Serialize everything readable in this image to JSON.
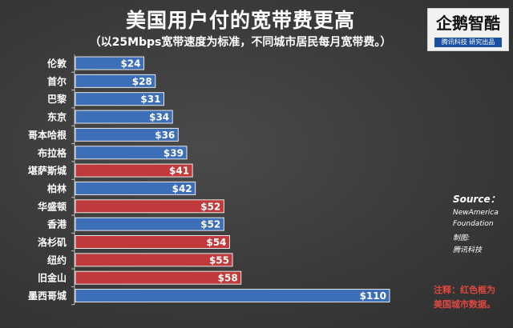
{
  "header": {
    "title": "美国用户付的宽带费更高",
    "subtitle": "（以25Mbps宽带速度为标准，不同城市居民每月宽带费。）"
  },
  "logo": {
    "name": "企鹅智酷",
    "sub": "腾讯科技  研究出品"
  },
  "source": {
    "label": "Source：",
    "line1": "NewAmerica",
    "line2": "Foundation",
    "line3": "制图:",
    "line4": "腾讯科技"
  },
  "note": {
    "line1": "注释：红色框为",
    "line2": "美国城市数据。"
  },
  "colors": {
    "blue": "#3c6fb8",
    "red": "#c0393b",
    "bar_border": "#e8e8e8",
    "text": "#ffffff",
    "axis": "#bdbdbd"
  },
  "chart_data": {
    "type": "bar",
    "orientation": "horizontal",
    "title": "美国用户付的宽带费更高",
    "subtitle": "（以25Mbps宽带速度为标准，不同城市居民每月宽带费。）",
    "xlabel": "",
    "ylabel": "",
    "xlim": [
      0,
      110
    ],
    "grid": false,
    "categories": [
      "伦敦",
      "首尔",
      "巴黎",
      "东京",
      "哥本哈根",
      "布拉格",
      "堪萨斯城",
      "柏林",
      "华盛顿",
      "香港",
      "洛杉矶",
      "纽约",
      "旧金山",
      "墨西哥城"
    ],
    "values": [
      24,
      28,
      31,
      34,
      36,
      39,
      41,
      42,
      52,
      52,
      54,
      55,
      58,
      110
    ],
    "labels": [
      "$24",
      "$28",
      "$31",
      "$34",
      "$36",
      "$39",
      "$41",
      "$42",
      "$52",
      "$52",
      "$54",
      "$55",
      "$58",
      "$110"
    ],
    "highlight_us": [
      false,
      false,
      false,
      false,
      false,
      false,
      true,
      false,
      true,
      false,
      true,
      true,
      true,
      false
    ]
  }
}
